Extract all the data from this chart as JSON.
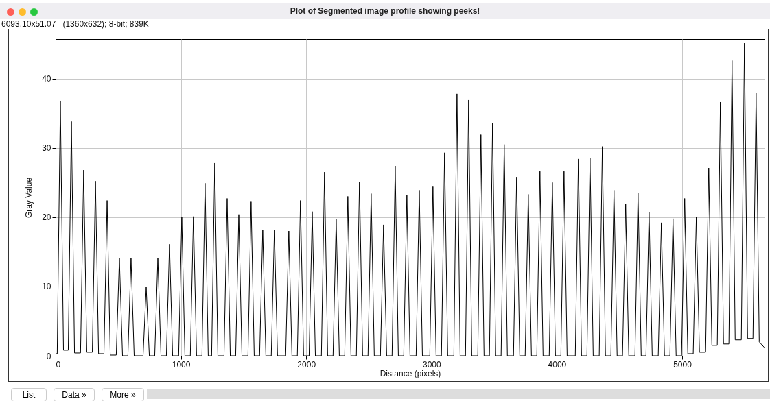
{
  "chart_data": {
    "type": "line",
    "title": "Plot of Segmented image profile showing peeks!",
    "subtitle": "6093.10x51.07   (1360x632); 8-bit; 839K",
    "xlabel": "Distance (pixels)",
    "ylabel": "Gray Value",
    "annotations": [
      "List",
      "Data »",
      "More »"
    ],
    "x": [
      0,
      13,
      38,
      63,
      101,
      126,
      151,
      199,
      224,
      249,
      293,
      318,
      343,
      386,
      411,
      436,
      484,
      509,
      534,
      577,
      602,
      627,
      698,
      723,
      748,
      791,
      816,
      841,
      884,
      909,
      934,
      982,
      1007,
      1032,
      1075,
      1100,
      1125,
      1168,
      1193,
      1218,
      1245,
      1270,
      1295,
      1344,
      1369,
      1394,
      1437,
      1462,
      1487,
      1535,
      1560,
      1585,
      1628,
      1653,
      1678,
      1721,
      1746,
      1771,
      1836,
      1861,
      1886,
      1929,
      1954,
      1979,
      2023,
      2048,
      2073,
      2121,
      2146,
      2171,
      2214,
      2239,
      2264,
      2307,
      2332,
      2357,
      2400,
      2425,
      2450,
      2493,
      2518,
      2543,
      2592,
      2617,
      2642,
      2685,
      2710,
      2735,
      2778,
      2803,
      2828,
      2877,
      2902,
      2927,
      2986,
      3011,
      3036,
      3079,
      3104,
      3129,
      3178,
      3203,
      3228,
      3271,
      3296,
      3321,
      3369,
      3394,
      3419,
      3462,
      3487,
      3512,
      3555,
      3580,
      3605,
      3654,
      3679,
      3704,
      3747,
      3772,
      3797,
      3840,
      3865,
      3890,
      3939,
      3964,
      3989,
      4032,
      4057,
      4082,
      4147,
      4172,
      4197,
      4240,
      4265,
      4290,
      4338,
      4363,
      4388,
      4431,
      4456,
      4481,
      4524,
      4549,
      4574,
      4623,
      4648,
      4673,
      4711,
      4736,
      4761,
      4809,
      4834,
      4859,
      4902,
      4927,
      4952,
      4995,
      5020,
      5045,
      5088,
      5113,
      5138,
      5187,
      5212,
      5237,
      5280,
      5305,
      5330,
      5373,
      5398,
      5423,
      5472,
      5497,
      5522,
      5565,
      5590,
      5615,
      5655
    ],
    "series": [
      {
        "color": "#000000",
        "values": [
          0.3,
          0.3,
          36.8,
          0.8,
          0.8,
          33.8,
          0.4,
          0.4,
          26.8,
          0.5,
          0.5,
          25.2,
          0.3,
          0.3,
          22.4,
          0.1,
          0.1,
          14.1,
          0,
          0,
          14.1,
          0,
          0,
          9.9,
          0,
          0,
          14.1,
          0,
          0,
          16.1,
          0,
          0,
          20,
          0,
          0,
          20.1,
          0,
          0,
          24.9,
          0,
          0,
          27.8,
          0,
          0,
          22.7,
          0,
          0,
          20.4,
          0,
          0,
          22.3,
          0,
          0,
          18.2,
          0,
          0,
          18.2,
          0,
          0,
          18,
          0,
          0,
          22.4,
          0,
          0,
          20.8,
          0,
          0,
          26.5,
          0,
          0,
          19.7,
          0,
          0,
          23,
          0,
          0,
          25.1,
          0,
          0,
          23.4,
          0,
          0,
          18.9,
          0,
          0,
          27.4,
          0,
          0,
          23.2,
          0,
          0,
          23.9,
          0,
          0,
          24.4,
          0,
          0,
          29.3,
          0,
          0,
          37.8,
          0,
          0,
          36.9,
          0,
          0,
          31.9,
          0,
          0,
          33.6,
          0,
          0,
          30.5,
          0,
          0,
          25.8,
          0,
          0,
          23.3,
          0,
          0,
          26.6,
          0,
          0,
          25,
          0,
          0,
          26.6,
          0,
          0,
          28.4,
          0,
          0,
          28.5,
          0,
          0,
          30.2,
          0,
          0,
          23.9,
          0,
          0,
          21.9,
          0,
          0,
          23.5,
          0,
          0,
          20.7,
          0,
          0,
          19.2,
          0,
          0,
          19.8,
          0,
          0,
          22.7,
          0.3,
          0.3,
          20,
          0.5,
          0.5,
          27.1,
          1.5,
          1.5,
          36.6,
          1.7,
          1.7,
          42.6,
          2.3,
          2.3,
          45.1,
          2.5,
          2.5,
          37.9,
          2.0,
          1.2
        ]
      }
    ],
    "xlim": [
      0,
      5657
    ],
    "xticks": [
      0,
      1000,
      2000,
      3000,
      4000,
      5000
    ],
    "ylim": [
      0,
      45.7
    ],
    "yticks": [
      0,
      10,
      20,
      30,
      40
    ],
    "grid": true
  }
}
